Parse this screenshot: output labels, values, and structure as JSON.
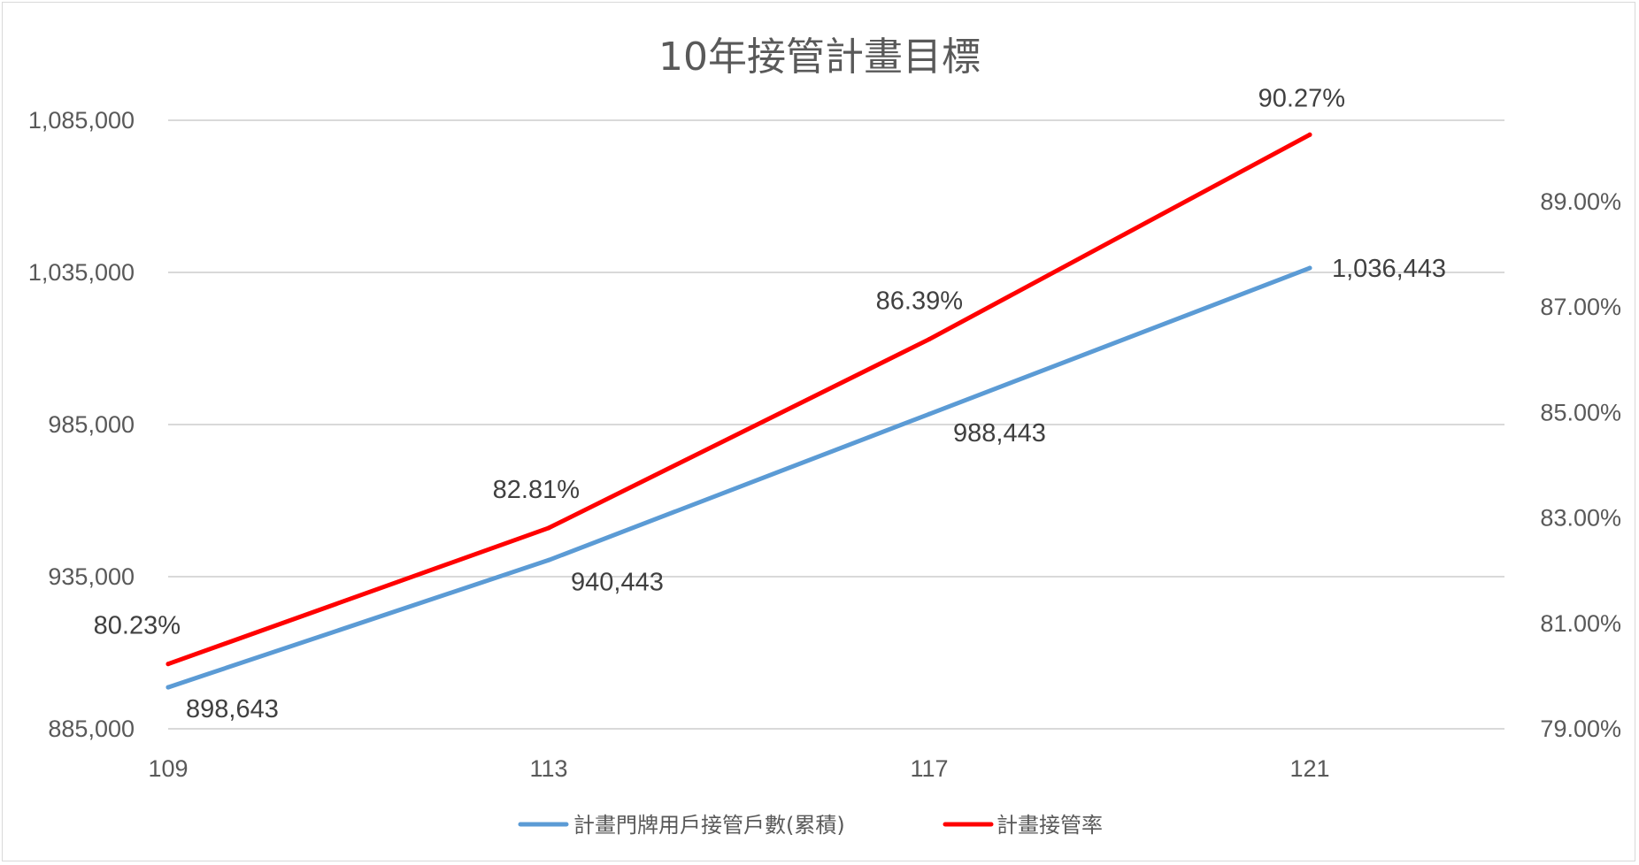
{
  "chart_data": {
    "type": "line",
    "title": "10年接管計畫目標",
    "categories": [
      "109",
      "113",
      "117",
      "121"
    ],
    "series": [
      {
        "name": "計畫門牌用戶接管戶數(累積)",
        "axis": "left",
        "color": "#5b9bd5",
        "values": [
          898643,
          940443,
          988443,
          1036443
        ],
        "labels": [
          "898,643",
          "940,443",
          "988,443",
          "1,036,443"
        ]
      },
      {
        "name": "計畫接管率",
        "axis": "right",
        "color": "#ff0000",
        "values": [
          80.23,
          82.81,
          86.39,
          90.27
        ],
        "labels": [
          "80.23%",
          "82.81%",
          "86.39%",
          "90.27%"
        ]
      }
    ],
    "y_left": {
      "range": [
        885000,
        1085000
      ],
      "ticks": [
        885000,
        935000,
        985000,
        1035000,
        1085000
      ],
      "tick_labels": [
        "885,000",
        "935,000",
        "985,000",
        "1,035,000",
        "1,085,000"
      ]
    },
    "y_right": {
      "range": [
        79,
        89
      ],
      "ticks": [
        79,
        81,
        83,
        85,
        87,
        89
      ],
      "tick_labels": [
        "79.00%",
        "81.00%",
        "83.00%",
        "85.00%",
        "87.00%",
        "89.00%"
      ]
    },
    "grid": true,
    "legend_position": "bottom"
  }
}
